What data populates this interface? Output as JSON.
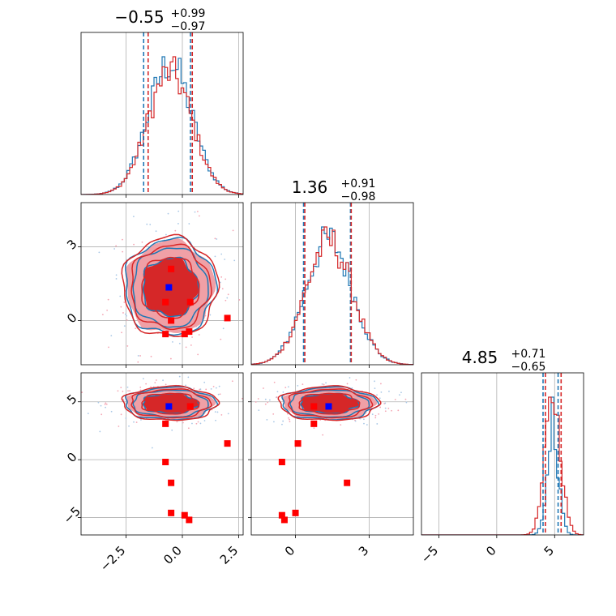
{
  "figure": {
    "titles": [
      {
        "main": "−0.55",
        "sup": "+0.99",
        "sub": "−0.97"
      },
      {
        "main": "1.36",
        "sup": "+0.91",
        "sub": "−0.98"
      },
      {
        "main": "4.85",
        "sup": "+0.71",
        "sub": "−0.65"
      }
    ]
  },
  "chart_data": {
    "type": "corner",
    "colors": {
      "blue": "#1f77b4",
      "red": "#d62728",
      "marker_red": "#ff0000",
      "marker_blue": "#0000ff"
    },
    "params": [
      {
        "median": -0.55,
        "q_lo": -1.52,
        "q_hi": 0.44,
        "range": [
          -4.5,
          2.7
        ],
        "ticks": [
          -2.5,
          0.0,
          2.5
        ],
        "tick_labels": [
          "−2.5",
          "0.0",
          "2.5"
        ],
        "dashed_blue": [
          -1.72,
          0.36
        ],
        "dashed_red": [
          -1.52,
          0.44
        ]
      },
      {
        "median": 1.36,
        "q_lo": 0.38,
        "q_hi": 2.27,
        "range": [
          -1.8,
          4.8
        ],
        "ticks": [
          0,
          3
        ],
        "tick_labels": [
          "0",
          "3"
        ],
        "dashed_blue": [
          0.33,
          2.24
        ],
        "dashed_red": [
          0.38,
          2.27
        ]
      },
      {
        "median": 4.85,
        "q_lo": 4.2,
        "q_hi": 5.56,
        "range": [
          -6.5,
          7.5
        ],
        "ticks": [
          -5,
          0,
          5
        ],
        "tick_labels": [
          "−5",
          "0",
          "5"
        ],
        "dashed_blue": [
          4.0,
          5.3
        ],
        "dashed_red": [
          4.2,
          5.56
        ]
      }
    ],
    "truths": [
      [
        -0.5,
        1.4,
        4.6
      ]
    ],
    "red_points": [
      [
        -0.5,
        2.1,
        -2.0
      ],
      [
        -0.75,
        0.75,
        3.1
      ],
      [
        0.35,
        0.75,
        4.6
      ],
      [
        -0.75,
        -0.55,
        -0.2
      ],
      [
        0.3,
        -0.45,
        -5.2
      ],
      [
        0.1,
        -0.55,
        -4.8
      ],
      [
        2.0,
        0.1,
        1.4
      ],
      [
        -0.5,
        0.0,
        -4.6
      ]
    ],
    "blue_points": [
      [
        -0.6,
        1.35,
        4.6
      ]
    ]
  }
}
